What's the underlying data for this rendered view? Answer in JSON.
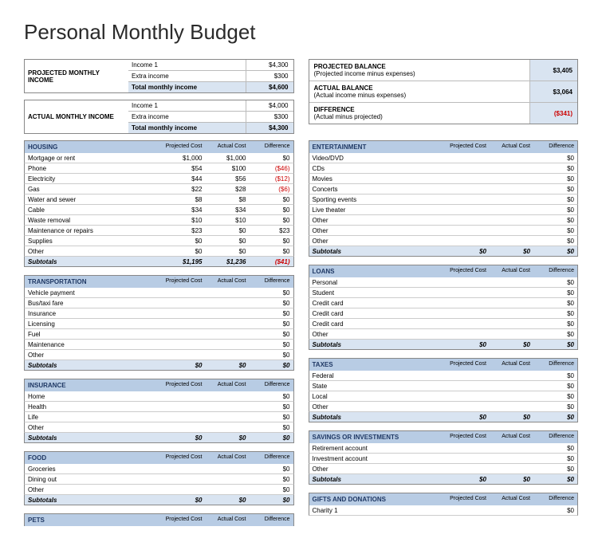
{
  "title": "Personal Monthly Budget",
  "colors": {
    "header_bg": "#b8cce4",
    "subtotal_bg": "#d9e4f1",
    "negative": "#c00000",
    "border": "#888888"
  },
  "projected_income": {
    "label": "PROJECTED MONTHLY INCOME",
    "lines": [
      {
        "label": "Income 1",
        "value": "$4,300"
      },
      {
        "label": "Extra income",
        "value": "$300"
      }
    ],
    "total_label": "Total monthly income",
    "total_value": "$4,600"
  },
  "actual_income": {
    "label": "ACTUAL MONTHLY INCOME",
    "lines": [
      {
        "label": "Income 1",
        "value": "$4,000"
      },
      {
        "label": "Extra income",
        "value": "$300"
      }
    ],
    "total_label": "Total monthly income",
    "total_value": "$4,300"
  },
  "balances": [
    {
      "title": "PROJECTED BALANCE",
      "sub": "(Projected income minus expenses)",
      "value": "$3,405",
      "neg": false
    },
    {
      "title": "ACTUAL BALANCE",
      "sub": "(Actual income minus expenses)",
      "value": "$3,064",
      "neg": false
    },
    {
      "title": "DIFFERENCE",
      "sub": "(Actual minus projected)",
      "value": "($341)",
      "neg": true
    }
  ],
  "col_headers": {
    "proj": "Projected Cost",
    "act": "Actual Cost",
    "diff": "Difference"
  },
  "subtotal_label": "Subtotals",
  "left_sections": [
    {
      "title": "HOUSING",
      "rows": [
        {
          "name": "Mortgage or rent",
          "proj": "$1,000",
          "act": "$1,000",
          "diff": "$0"
        },
        {
          "name": "Phone",
          "proj": "$54",
          "act": "$100",
          "diff": "($46)",
          "neg": true
        },
        {
          "name": "Electricity",
          "proj": "$44",
          "act": "$56",
          "diff": "($12)",
          "neg": true
        },
        {
          "name": "Gas",
          "proj": "$22",
          "act": "$28",
          "diff": "($6)",
          "neg": true
        },
        {
          "name": "Water and sewer",
          "proj": "$8",
          "act": "$8",
          "diff": "$0"
        },
        {
          "name": "Cable",
          "proj": "$34",
          "act": "$34",
          "diff": "$0"
        },
        {
          "name": "Waste removal",
          "proj": "$10",
          "act": "$10",
          "diff": "$0"
        },
        {
          "name": "Maintenance or repairs",
          "proj": "$23",
          "act": "$0",
          "diff": "$23"
        },
        {
          "name": "Supplies",
          "proj": "$0",
          "act": "$0",
          "diff": "$0"
        },
        {
          "name": "Other",
          "proj": "$0",
          "act": "$0",
          "diff": "$0"
        }
      ],
      "sub": {
        "proj": "$1,195",
        "act": "$1,236",
        "diff": "($41)",
        "neg": true
      }
    },
    {
      "title": "TRANSPORTATION",
      "rows": [
        {
          "name": "Vehicle payment",
          "proj": "",
          "act": "",
          "diff": "$0"
        },
        {
          "name": "Bus/taxi fare",
          "proj": "",
          "act": "",
          "diff": "$0"
        },
        {
          "name": "Insurance",
          "proj": "",
          "act": "",
          "diff": "$0"
        },
        {
          "name": "Licensing",
          "proj": "",
          "act": "",
          "diff": "$0"
        },
        {
          "name": "Fuel",
          "proj": "",
          "act": "",
          "diff": "$0"
        },
        {
          "name": "Maintenance",
          "proj": "",
          "act": "",
          "diff": "$0"
        },
        {
          "name": "Other",
          "proj": "",
          "act": "",
          "diff": "$0"
        }
      ],
      "sub": {
        "proj": "$0",
        "act": "$0",
        "diff": "$0"
      }
    },
    {
      "title": "INSURANCE",
      "rows": [
        {
          "name": "Home",
          "proj": "",
          "act": "",
          "diff": "$0"
        },
        {
          "name": "Health",
          "proj": "",
          "act": "",
          "diff": "$0"
        },
        {
          "name": "Life",
          "proj": "",
          "act": "",
          "diff": "$0"
        },
        {
          "name": "Other",
          "proj": "",
          "act": "",
          "diff": "$0"
        }
      ],
      "sub": {
        "proj": "$0",
        "act": "$0",
        "diff": "$0"
      }
    },
    {
      "title": "FOOD",
      "rows": [
        {
          "name": "Groceries",
          "proj": "",
          "act": "",
          "diff": "$0"
        },
        {
          "name": "Dining out",
          "proj": "",
          "act": "",
          "diff": "$0"
        },
        {
          "name": "Other",
          "proj": "",
          "act": "",
          "diff": "$0"
        }
      ],
      "sub": {
        "proj": "$0",
        "act": "$0",
        "diff": "$0"
      }
    },
    {
      "title": "PETS",
      "rows": [],
      "sub": null
    }
  ],
  "right_sections": [
    {
      "title": "ENTERTAINMENT",
      "rows": [
        {
          "name": "Video/DVD",
          "proj": "",
          "act": "",
          "diff": "$0"
        },
        {
          "name": "CDs",
          "proj": "",
          "act": "",
          "diff": "$0"
        },
        {
          "name": "Movies",
          "proj": "",
          "act": "",
          "diff": "$0"
        },
        {
          "name": "Concerts",
          "proj": "",
          "act": "",
          "diff": "$0"
        },
        {
          "name": "Sporting events",
          "proj": "",
          "act": "",
          "diff": "$0"
        },
        {
          "name": "Live theater",
          "proj": "",
          "act": "",
          "diff": "$0"
        },
        {
          "name": "Other",
          "proj": "",
          "act": "",
          "diff": "$0"
        },
        {
          "name": "Other",
          "proj": "",
          "act": "",
          "diff": "$0"
        },
        {
          "name": "Other",
          "proj": "",
          "act": "",
          "diff": "$0"
        }
      ],
      "sub": {
        "proj": "$0",
        "act": "$0",
        "diff": "$0"
      }
    },
    {
      "title": "LOANS",
      "rows": [
        {
          "name": "Personal",
          "proj": "",
          "act": "",
          "diff": "$0"
        },
        {
          "name": "Student",
          "proj": "",
          "act": "",
          "diff": "$0"
        },
        {
          "name": "Credit card",
          "proj": "",
          "act": "",
          "diff": "$0"
        },
        {
          "name": "Credit card",
          "proj": "",
          "act": "",
          "diff": "$0"
        },
        {
          "name": "Credit card",
          "proj": "",
          "act": "",
          "diff": "$0"
        },
        {
          "name": "Other",
          "proj": "",
          "act": "",
          "diff": "$0"
        }
      ],
      "sub": {
        "proj": "$0",
        "act": "$0",
        "diff": "$0"
      }
    },
    {
      "title": "TAXES",
      "rows": [
        {
          "name": "Federal",
          "proj": "",
          "act": "",
          "diff": "$0"
        },
        {
          "name": "State",
          "proj": "",
          "act": "",
          "diff": "$0"
        },
        {
          "name": "Local",
          "proj": "",
          "act": "",
          "diff": "$0"
        },
        {
          "name": "Other",
          "proj": "",
          "act": "",
          "diff": "$0"
        }
      ],
      "sub": {
        "proj": "$0",
        "act": "$0",
        "diff": "$0"
      }
    },
    {
      "title": "SAVINGS OR INVESTMENTS",
      "rows": [
        {
          "name": "Retirement account",
          "proj": "",
          "act": "",
          "diff": "$0"
        },
        {
          "name": "Investment account",
          "proj": "",
          "act": "",
          "diff": "$0"
        },
        {
          "name": "Other",
          "proj": "",
          "act": "",
          "diff": "$0"
        }
      ],
      "sub": {
        "proj": "$0",
        "act": "$0",
        "diff": "$0"
      }
    },
    {
      "title": "GIFTS AND DONATIONS",
      "rows": [
        {
          "name": "Charity 1",
          "proj": "",
          "act": "",
          "diff": "$0"
        }
      ],
      "sub": null
    }
  ]
}
